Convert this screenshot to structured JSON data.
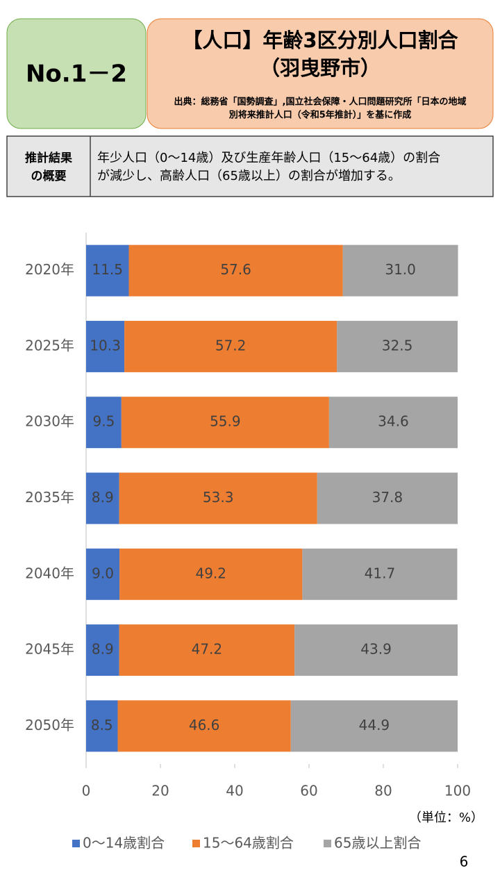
{
  "header": {
    "number": "No.1－2",
    "title_lines": [
      "【人口】年齢3区分別人口割合",
      "（羽曳野市）"
    ],
    "source_lines": [
      "出典：総務省「国勢調査」,国立社会保障・人口問題研究所「日本の地域",
      "別将来推計人口（令和5年推計）」を基に作成"
    ]
  },
  "summary": {
    "label_lines": [
      "推計結果",
      "の概要"
    ],
    "text_lines": [
      "年少人口（0～14歳）及び生産年齢人口（15～64歳）の割合",
      "が減少し、高齢人口（65歳以上）の割合が増加する。"
    ]
  },
  "chart_data": {
    "type": "stacked-barh",
    "categories": [
      "2020年",
      "2025年",
      "2030年",
      "2035年",
      "2040年",
      "2045年",
      "2050年"
    ],
    "series": [
      {
        "name": "0～14歳割合",
        "color": "#4472c4",
        "values": [
          11.5,
          10.3,
          9.5,
          8.9,
          9,
          8.9,
          8.5
        ],
        "value_labels": [
          "11.5",
          "10.3",
          "9.5",
          "8.9",
          "9.0",
          "8.9",
          "8.5"
        ]
      },
      {
        "name": "15～64歳割合",
        "color": "#ed7d31",
        "values": [
          57.6,
          57.2,
          55.9,
          53.3,
          49.2,
          47.2,
          46.6
        ],
        "value_labels": [
          "57.6",
          "57.2",
          "55.9",
          "53.3",
          "49.2",
          "47.2",
          "46.6"
        ]
      },
      {
        "name": "65歳以上割合",
        "color": "#a5a5a5",
        "values": [
          31,
          32.5,
          34.6,
          37.8,
          41.7,
          43.9,
          44.9
        ],
        "value_labels": [
          "31.0",
          "32.5",
          "34.6",
          "37.8",
          "41.7",
          "43.9",
          "44.9"
        ]
      }
    ],
    "xlim": [
      0,
      100
    ],
    "xticks": [
      0,
      20,
      40,
      60,
      80,
      100
    ],
    "unit_note": "（単位：%）",
    "legend": "bottom"
  },
  "page_number": "6"
}
